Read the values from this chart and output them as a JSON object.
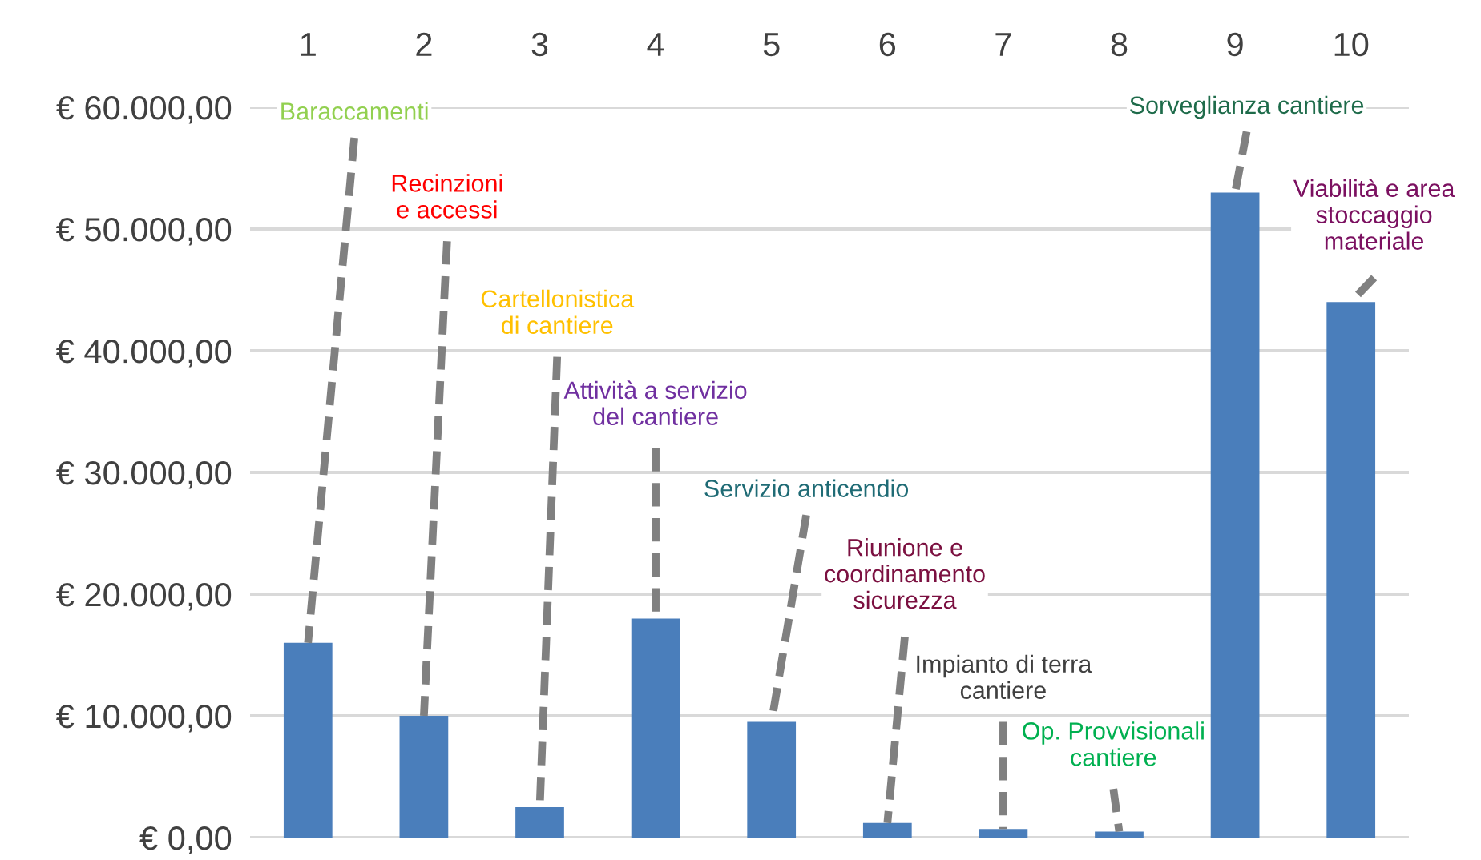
{
  "chart_data": {
    "type": "bar",
    "categories": [
      "1",
      "2",
      "3",
      "4",
      "5",
      "6",
      "7",
      "8",
      "9",
      "10"
    ],
    "values": [
      16000,
      10000,
      2500,
      18000,
      9500,
      1200,
      700,
      500,
      53000,
      44000
    ],
    "color": "#4a7ebb",
    "ylim": [
      0,
      60000
    ],
    "yticks": [
      {
        "value": 0,
        "label": "€ 0,00"
      },
      {
        "value": 10000,
        "label": "€ 10.000,00"
      },
      {
        "value": 20000,
        "label": "€ 20.000,00"
      },
      {
        "value": 30000,
        "label": "€ 30.000,00"
      },
      {
        "value": 40000,
        "label": "€ 40.000,00"
      },
      {
        "value": 50000,
        "label": "€ 50.000,00"
      },
      {
        "value": 60000,
        "label": "€ 60.000,00"
      }
    ],
    "grid": "y",
    "annotations": [
      {
        "text": "Baraccamenti",
        "x": "1",
        "y": 16000
      },
      {
        "text": "Recinzioni\ne accessi",
        "x": "2",
        "y": 10000
      },
      {
        "text": "Cartellonistica\ndi cantiere",
        "x": "3",
        "y": 2500
      },
      {
        "text": "Attività a servizio\ndel cantiere",
        "x": "4",
        "y": 18000
      },
      {
        "text": "Servizio anticendio",
        "x": "5",
        "y": 9500
      },
      {
        "text": "Riunione e\ncoordinamento\nsicurezza",
        "x": "6",
        "y": 1200
      },
      {
        "text": "Impianto di terra\ncantiere",
        "x": "7",
        "y": 700
      },
      {
        "text": "Op. Provvisionali\ncantiere",
        "x": "8",
        "y": 500
      },
      {
        "text": "Sorveglianza cantiere",
        "x": "9",
        "y": 53000
      },
      {
        "text": "Viabilità e area\nstoccaggio\nmateriale",
        "x": "10",
        "y": 44000
      }
    ]
  }
}
